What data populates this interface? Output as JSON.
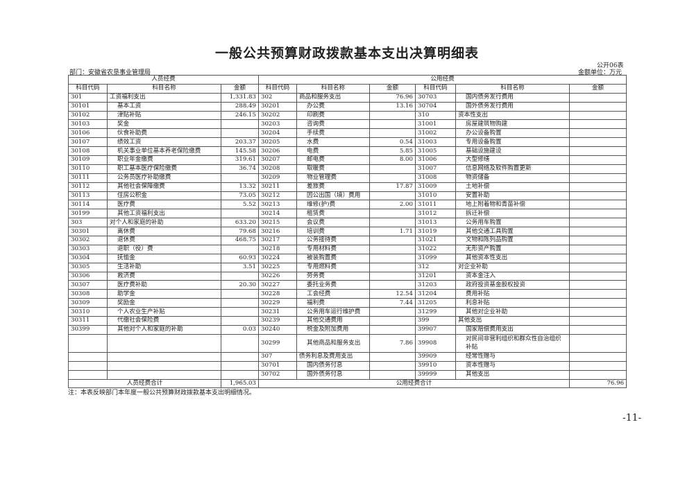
{
  "title": "一般公共预算财政拨款基本支出决算明细表",
  "table_no": "公开06表",
  "department": "部门：安徽省农垦事业管理局",
  "unit": "金额单位：万元",
  "groups": {
    "personnel": "人员经费",
    "public": "公用经费"
  },
  "headers": {
    "code": "科目代码",
    "name": "科目名称",
    "amount": "金额"
  },
  "rows": [
    {
      "l": [
        "301",
        "工资福利支出",
        "1,331.83"
      ],
      "m": [
        "302",
        "商品和服务支出",
        "76.96"
      ],
      "r": [
        "30703",
        "国内债务发行费用",
        ""
      ]
    },
    {
      "l": [
        "30101",
        "基本工资",
        "288.49"
      ],
      "m": [
        "30201",
        "办公费",
        "13.16"
      ],
      "r": [
        "30704",
        "国外债务发行费用",
        ""
      ]
    },
    {
      "l": [
        "30102",
        "津贴补贴",
        "246.15"
      ],
      "m": [
        "30202",
        "印刷费",
        ""
      ],
      "r": [
        "310",
        "资本性支出",
        ""
      ]
    },
    {
      "l": [
        "30103",
        "奖金",
        ""
      ],
      "m": [
        "30203",
        "咨询费",
        ""
      ],
      "r": [
        "31001",
        "房屋建筑物购建",
        ""
      ]
    },
    {
      "l": [
        "30106",
        "伙食补助费",
        ""
      ],
      "m": [
        "30204",
        "手续费",
        ""
      ],
      "r": [
        "31002",
        "办公设备购置",
        ""
      ]
    },
    {
      "l": [
        "30107",
        "绩效工资",
        "203.37"
      ],
      "m": [
        "30205",
        "水费",
        "0.54"
      ],
      "r": [
        "31003",
        "专用设备购置",
        ""
      ]
    },
    {
      "l": [
        "30108",
        "机关事业单位基本养老保险缴费",
        "145.58"
      ],
      "m": [
        "30206",
        "电费",
        "5.85"
      ],
      "r": [
        "31005",
        "基础设施建设",
        ""
      ]
    },
    {
      "l": [
        "30109",
        "职业年金缴费",
        "319.61"
      ],
      "m": [
        "30207",
        "邮电费",
        "8.00"
      ],
      "r": [
        "31006",
        "大型修缮",
        ""
      ]
    },
    {
      "l": [
        "30110",
        "职工基本医疗保险缴费",
        "36.74"
      ],
      "m": [
        "30208",
        "取暖费",
        ""
      ],
      "r": [
        "31007",
        "信息网络及软件购置更新",
        ""
      ]
    },
    {
      "l": [
        "30111",
        "公务员医疗补助缴费",
        ""
      ],
      "m": [
        "30209",
        "物业管理费",
        ""
      ],
      "r": [
        "31008",
        "物资储备",
        ""
      ]
    },
    {
      "l": [
        "30112",
        "其他社会保障缴费",
        "13.32"
      ],
      "m": [
        "30211",
        "差旅费",
        "17.87"
      ],
      "r": [
        "31009",
        "土地补偿",
        ""
      ]
    },
    {
      "l": [
        "30113",
        "住房公积金",
        "73.05"
      ],
      "m": [
        "30212",
        "因公出国（境）费用",
        ""
      ],
      "r": [
        "31010",
        "安置补助",
        ""
      ]
    },
    {
      "l": [
        "30114",
        "医疗费",
        "5.52"
      ],
      "m": [
        "30213",
        "维修(护)费",
        "2.00"
      ],
      "r": [
        "31011",
        "地上附着物和青苗补偿",
        ""
      ]
    },
    {
      "l": [
        "30199",
        "其他工资福利支出",
        ""
      ],
      "m": [
        "30214",
        "租赁费",
        ""
      ],
      "r": [
        "31012",
        "拆迁补偿",
        ""
      ]
    },
    {
      "l": [
        "303",
        "对个人和家庭的补助",
        "633.20"
      ],
      "m": [
        "30215",
        "会议费",
        ""
      ],
      "r": [
        "31013",
        "公务用车购置",
        ""
      ]
    },
    {
      "l": [
        "30301",
        "离休费",
        "79.68"
      ],
      "m": [
        "30216",
        "培训费",
        "1.71"
      ],
      "r": [
        "31019",
        "其他交通工具购置",
        ""
      ]
    },
    {
      "l": [
        "30302",
        "退休费",
        "468.75"
      ],
      "m": [
        "30217",
        "公务接待费",
        ""
      ],
      "r": [
        "31021",
        "文物和陈列品购置",
        ""
      ]
    },
    {
      "l": [
        "30303",
        "退职（役）费",
        ""
      ],
      "m": [
        "30218",
        "专用材料费",
        ""
      ],
      "r": [
        "31022",
        "无形资产购置",
        ""
      ]
    },
    {
      "l": [
        "30304",
        "抚恤金",
        "60.93"
      ],
      "m": [
        "30224",
        "被装购置费",
        ""
      ],
      "r": [
        "31099",
        "其他资本性支出",
        ""
      ]
    },
    {
      "l": [
        "30305",
        "生活补助",
        "3.51"
      ],
      "m": [
        "30225",
        "专用燃料费",
        ""
      ],
      "r": [
        "312",
        "对企业补助",
        ""
      ]
    },
    {
      "l": [
        "30306",
        "救济费",
        ""
      ],
      "m": [
        "30226",
        "劳务费",
        ""
      ],
      "r": [
        "31201",
        "资本金注入",
        ""
      ]
    },
    {
      "l": [
        "30307",
        "医疗费补助",
        "20.30"
      ],
      "m": [
        "30227",
        "委托业务费",
        ""
      ],
      "r": [
        "31203",
        "政府投资基金股权投资",
        ""
      ]
    },
    {
      "l": [
        "30308",
        "助学金",
        ""
      ],
      "m": [
        "30228",
        "工会经费",
        "12.54"
      ],
      "r": [
        "31204",
        "费用补贴",
        ""
      ]
    },
    {
      "l": [
        "30309",
        "奖励金",
        ""
      ],
      "m": [
        "30229",
        "福利费",
        "7.44"
      ],
      "r": [
        "31205",
        "利息补贴",
        ""
      ]
    },
    {
      "l": [
        "30310",
        "个人农业生产补贴",
        ""
      ],
      "m": [
        "30231",
        "公务用车运行维护费",
        ""
      ],
      "r": [
        "31299",
        "其他对企业补助",
        ""
      ]
    },
    {
      "l": [
        "30311",
        "代缴社会保险费",
        ""
      ],
      "m": [
        "30239",
        "其他交通费用",
        ""
      ],
      "r": [
        "399",
        "其他支出",
        ""
      ]
    },
    {
      "l": [
        "30399",
        "其他对个人和家庭的补助",
        "0.03"
      ],
      "m": [
        "30240",
        "税金及附加费用",
        ""
      ],
      "r": [
        "39907",
        "国家赔偿费用支出",
        ""
      ]
    },
    {
      "l": [
        "",
        "",
        ""
      ],
      "m": [
        "30299",
        "其他商品和服务支出",
        "7.86"
      ],
      "r": [
        "39908",
        "对民间非营利组织和群众性自治组织补贴",
        ""
      ]
    },
    {
      "l": [
        "",
        "",
        ""
      ],
      "m": [
        "307",
        "债务利息及费用支出",
        ""
      ],
      "r": [
        "39909",
        "经常性赠与",
        ""
      ]
    },
    {
      "l": [
        "",
        "",
        ""
      ],
      "m": [
        "30701",
        "国内债务付息",
        ""
      ],
      "r": [
        "39910",
        "资本性赠与",
        ""
      ]
    },
    {
      "l": [
        "",
        "",
        ""
      ],
      "m": [
        "30702",
        "国外债务付息",
        ""
      ],
      "r": [
        "39999",
        "其他支出",
        ""
      ]
    }
  ],
  "totals": {
    "personnel_label": "人员经费合计",
    "personnel_amount": "1,965.03",
    "public_label": "公用经费合计",
    "public_amount": "76.96"
  },
  "note": "注：本表反映部门本年度一般公共预算财政拨款基本支出明细情况。",
  "page_number": "-11-"
}
